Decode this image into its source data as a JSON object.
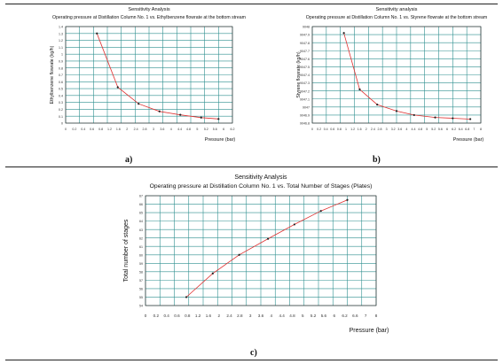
{
  "panels": [
    {
      "label": "a)"
    },
    {
      "label": "b)"
    },
    {
      "label": "c)"
    }
  ],
  "colors": {
    "grid": "#2f8f8f",
    "curve": "#e03030",
    "marker": "#222222",
    "axis": "#333333"
  },
  "chart_data": [
    {
      "type": "line",
      "title": "Sensitivity Analysis",
      "subtitle": "Operating pressure at Distillation Column No. 1 vs. Ethylbenzene flowrate at the bottom stream",
      "xlabel": "Pressure (bar)",
      "ylabel": "Ethylbenzene flowrate (kg/h)",
      "xlim": [
        0,
        0.96
      ],
      "ylim": [
        0,
        1.4
      ],
      "xticks": [
        "0",
        "0.2",
        "0.4",
        "0.6",
        "0.8",
        "1.2",
        "1.6",
        "2",
        "2.4",
        "2.8",
        "3",
        "3.6",
        "4",
        "4.4",
        "4.8",
        "5",
        "5.2",
        "5.6",
        "6",
        "6.2"
      ],
      "yticks": [
        "0",
        "0.1",
        "0.2",
        "0.3",
        "0.4",
        "0.5",
        "0.6",
        "0.7",
        "0.8",
        "0.9",
        "1",
        "1.1",
        "1.2",
        "1.3",
        "1.4"
      ],
      "grid": true,
      "series": [
        {
          "x": [
            0.18,
            0.3,
            0.42,
            0.54,
            0.66,
            0.78,
            0.88
          ],
          "y": [
            1.3,
            0.52,
            0.28,
            0.17,
            0.12,
            0.08,
            0.06
          ]
        }
      ]
    },
    {
      "type": "line",
      "title": "Sensitivity analysis",
      "subtitle": "Operating pressure at Distillation Column No. 1 vs. Styrene flowrate at the bottom stream",
      "xlabel": "Pressure (bar)",
      "ylabel": "Styrene flowrate (kg/h)",
      "xlim": [
        0,
        0.96
      ],
      "ylim": [
        9046.8,
        9048
      ],
      "xticks": [
        "0",
        "0.2",
        "0.4",
        "0.6",
        "0.8",
        "1",
        "1.2",
        "1.6",
        "2",
        "2.4",
        "2.8",
        "3",
        "3.2",
        "3.6",
        "4",
        "4.4",
        "4.8",
        "5",
        "5.2",
        "5.6",
        "6",
        "6.2",
        "6.4",
        "6.8",
        "7",
        "8"
      ],
      "yticks": [
        "9046.8",
        "9046.9",
        "9047",
        "9047.1",
        "9047.2",
        "9047.3",
        "9047.4",
        "9047.5",
        "9047.6",
        "9047.7",
        "9047.8",
        "9047.9",
        "9048"
      ],
      "grid": true,
      "series": [
        {
          "x": [
            0.18,
            0.27,
            0.37,
            0.48,
            0.58,
            0.7,
            0.8,
            0.9
          ],
          "y": [
            9047.92,
            9047.22,
            9047.03,
            9046.95,
            9046.9,
            9046.87,
            9046.86,
            9046.85
          ]
        }
      ]
    },
    {
      "type": "line",
      "title": "Sensitivity Analysis",
      "subtitle": "Operating pressure at Distillation Column No. 1 vs. Total Number of Stages (Plates)",
      "xlabel": "Pressure (bar)",
      "ylabel": "Total number of stages",
      "xlim": [
        0,
        0.96
      ],
      "ylim": [
        54,
        67
      ],
      "xticks": [
        "0",
        "0.2",
        "0.4",
        "0.6",
        "0.8",
        "1.2",
        "1.6",
        "2",
        "2.4",
        "2.8",
        "3",
        "3.6",
        "4",
        "4.4",
        "4.8",
        "5",
        "5.2",
        "5.6",
        "6",
        "6.2",
        "6.6",
        "7",
        "8"
      ],
      "yticks": [
        "54",
        "55",
        "56",
        "57",
        "58",
        "59",
        "60",
        "61",
        "62",
        "63",
        "64",
        "65",
        "66",
        "67"
      ],
      "grid": true,
      "series": [
        {
          "x": [
            0.17,
            0.28,
            0.39,
            0.51,
            0.62,
            0.73,
            0.84
          ],
          "y": [
            55,
            57.8,
            60,
            61.9,
            63.6,
            65.2,
            66.5
          ]
        }
      ]
    }
  ]
}
